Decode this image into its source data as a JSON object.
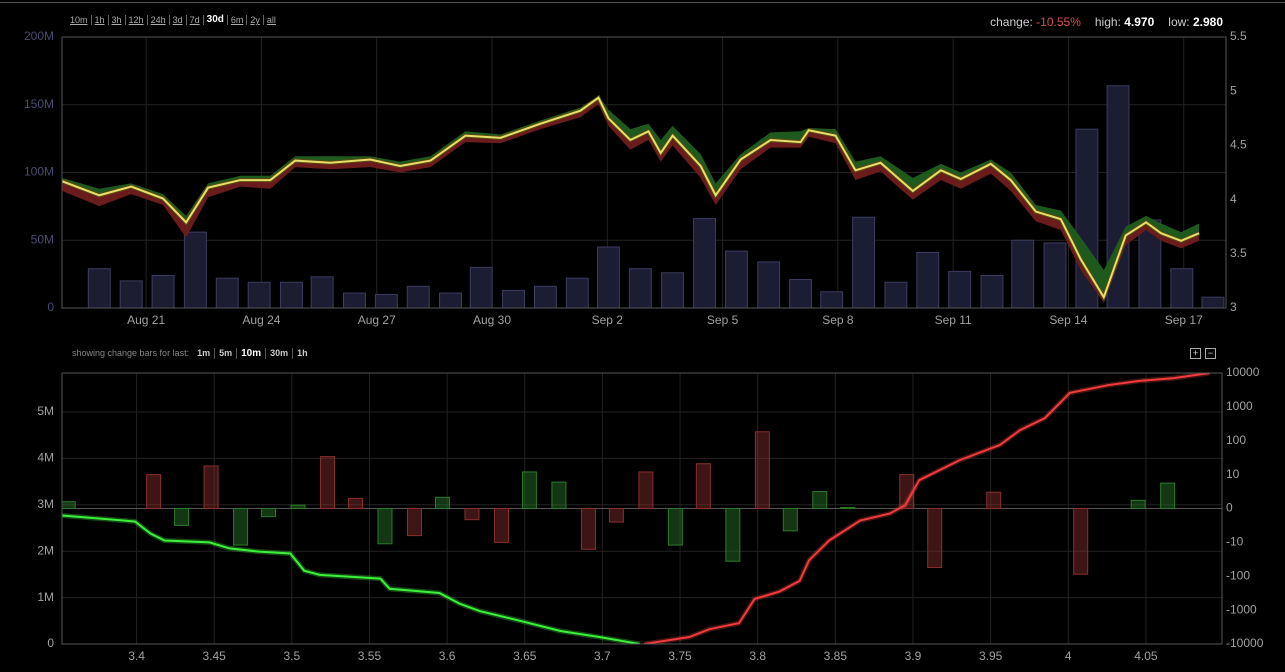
{
  "toolbar": {
    "ranges": [
      "10m",
      "1h",
      "3h",
      "12h",
      "24h",
      "3d",
      "7d",
      "30d",
      "6m",
      "2y",
      "all"
    ],
    "selected": 7
  },
  "stats": [
    {
      "label": "change:",
      "value": "-10.55%"
    },
    {
      "label": "high:",
      "value": "4.970"
    },
    {
      "label": "low:",
      "value": "2.980"
    }
  ],
  "change_bar_options": {
    "caption": "showing change bars for last:",
    "options": [
      "1m",
      "5m",
      "10m",
      "30m",
      "1h"
    ],
    "selected": 2
  },
  "zoom_buttons": [
    "+",
    "−"
  ],
  "chart_data": [
    {
      "type": "price",
      "xlim": [
        -2.19,
        28.1
      ],
      "xticks": [
        {
          "value": 0,
          "label": "Aug 21"
        },
        {
          "value": 3,
          "label": "Aug 24"
        },
        {
          "value": 6,
          "label": "Aug 27"
        },
        {
          "value": 9,
          "label": "Aug 30"
        },
        {
          "value": 12,
          "label": "Sep 2"
        },
        {
          "value": 15,
          "label": "Sep 5"
        },
        {
          "value": 18,
          "label": "Sep 8"
        },
        {
          "value": 21,
          "label": "Sep 11"
        },
        {
          "value": 24,
          "label": "Sep 14"
        },
        {
          "value": 27,
          "label": "Sep 17"
        }
      ],
      "ylim": [
        0,
        200000000
      ],
      "yticks": [
        0,
        {
          "value": 50000000,
          "label": "50M"
        },
        {
          "value": 100000000,
          "label": "100M"
        },
        {
          "value": 150000000,
          "label": "150M"
        },
        {
          "value": 200000000,
          "label": "200M"
        }
      ],
      "y2lim": [
        3,
        5.5
      ],
      "y2ticks": [
        3,
        3.5,
        4,
        4.5,
        5,
        5.5
      ],
      "grid": true,
      "volume": {
        "color": "#1c1c33",
        "bar_width": 0.57,
        "x": [
          -1.22,
          -0.39,
          0.44,
          1.28,
          2.11,
          2.94,
          3.78,
          4.58,
          5.42,
          6.25,
          7.08,
          7.92,
          8.72,
          9.56,
          10.39,
          11.22,
          12.03,
          12.86,
          13.7,
          14.53,
          15.36,
          16.2,
          17.03,
          17.84,
          18.67,
          19.51,
          20.34,
          21.17,
          22.01,
          22.81,
          23.65,
          24.48,
          25.29,
          26.12,
          26.95,
          27.76
        ],
        "values": [
          29000000,
          20000000,
          24000000,
          56000000,
          22000000,
          19000000,
          19000000,
          23000000,
          11000000,
          10000000,
          16000000,
          11000000,
          30000000,
          13000000,
          16000000,
          22000000,
          45000000,
          29000000,
          26000000,
          66000000,
          42000000,
          34000000,
          21000000,
          12000000,
          67000000,
          19000000,
          41000000,
          27000000,
          24000000,
          50000000,
          48000000,
          132000000,
          164000000,
          65000000,
          29000000,
          8000000
        ]
      },
      "price": {
        "axis": "y2",
        "color": "#e6df6a",
        "upper_color": "#1e5a1e",
        "lower_color": "#6a1c1c",
        "x": [
          -2.19,
          -1.22,
          -0.39,
          0.44,
          1.04,
          1.61,
          2.45,
          3.23,
          3.88,
          4.79,
          5.83,
          6.61,
          7.4,
          8.31,
          9.22,
          10.26,
          11.3,
          11.77,
          12.03,
          12.6,
          13.07,
          13.39,
          13.7,
          14.43,
          14.82,
          15.47,
          16.25,
          17.03,
          17.24,
          17.94,
          18.46,
          19.11,
          19.95,
          20.68,
          21.2,
          21.98,
          22.5,
          23.15,
          23.8,
          24.32,
          24.92,
          25.49,
          26.02,
          26.41,
          26.93,
          27.4
        ],
        "values": [
          4.17,
          4.04,
          4.12,
          4.01,
          3.79,
          4.11,
          4.18,
          4.18,
          4.36,
          4.34,
          4.37,
          4.31,
          4.36,
          4.59,
          4.57,
          4.7,
          4.82,
          4.94,
          4.75,
          4.55,
          4.63,
          4.43,
          4.59,
          4.31,
          4.04,
          4.37,
          4.55,
          4.53,
          4.64,
          4.59,
          4.27,
          4.34,
          4.08,
          4.27,
          4.19,
          4.33,
          4.18,
          3.89,
          3.82,
          3.45,
          3.1,
          3.67,
          3.79,
          3.69,
          3.62,
          3.69
        ],
        "upper": [
          4.2,
          4.1,
          4.15,
          4.05,
          3.85,
          4.15,
          4.22,
          4.22,
          4.4,
          4.4,
          4.4,
          4.35,
          4.4,
          4.63,
          4.6,
          4.73,
          4.85,
          4.96,
          4.83,
          4.65,
          4.7,
          4.55,
          4.68,
          4.42,
          4.15,
          4.42,
          4.62,
          4.63,
          4.66,
          4.65,
          4.35,
          4.4,
          4.2,
          4.33,
          4.25,
          4.37,
          4.25,
          3.95,
          3.9,
          3.65,
          3.35,
          3.75,
          3.85,
          3.78,
          3.7,
          3.78
        ],
        "lower": [
          4.08,
          3.94,
          4.05,
          3.95,
          3.65,
          4.02,
          4.12,
          4.1,
          4.3,
          4.28,
          4.3,
          4.25,
          4.3,
          4.53,
          4.52,
          4.65,
          4.76,
          4.88,
          4.68,
          4.46,
          4.55,
          4.35,
          4.5,
          4.2,
          3.95,
          4.28,
          4.48,
          4.48,
          4.58,
          4.52,
          4.18,
          4.26,
          4.0,
          4.18,
          4.1,
          4.24,
          4.08,
          3.8,
          3.72,
          3.35,
          3.05,
          3.58,
          3.72,
          3.62,
          3.55,
          3.62
        ]
      }
    },
    {
      "type": "depth",
      "xlim": [
        3.352,
        4.099
      ],
      "xticks": [
        3.4,
        3.45,
        3.5,
        3.55,
        3.6,
        3.65,
        3.7,
        3.75,
        3.8,
        3.85,
        3.9,
        3.95,
        4,
        4.05
      ],
      "ylim": [
        0,
        5840000
      ],
      "yticks": [
        0,
        {
          "value": 1000000,
          "label": "1M"
        },
        {
          "value": 2000000,
          "label": "2M"
        },
        {
          "value": 3000000,
          "label": "3M"
        },
        {
          "value": 4000000,
          "label": "4M"
        },
        {
          "value": 5000000,
          "label": "5M"
        }
      ],
      "y2lim": [
        -10000,
        10000
      ],
      "y2ticks": [
        -10000,
        -1000,
        -100,
        -10,
        0,
        10,
        100,
        1000,
        10000
      ],
      "y2scale": "symlog",
      "grid": true,
      "change_bars": {
        "axis": "y2",
        "bar_width": 0.009,
        "x": [
          3.356,
          3.411,
          3.429,
          3.448,
          3.467,
          3.485,
          3.504,
          3.523,
          3.541,
          3.56,
          3.579,
          3.597,
          3.616,
          3.635,
          3.653,
          3.672,
          3.691,
          3.709,
          3.728,
          3.747,
          3.765,
          3.784,
          3.803,
          3.821,
          3.84,
          3.858,
          3.896,
          3.914,
          3.952,
          4.008,
          4.045,
          4.064
        ],
        "values": [
          2,
          10,
          -5,
          18,
          -12,
          -2.4,
          1,
          34,
          3,
          -11,
          -8,
          3.3,
          -3.3,
          -10,
          12,
          7.8,
          -16,
          -4,
          12,
          -12,
          21,
          -36,
          184,
          -6.6,
          5,
          0.3,
          10,
          -55,
          4.8,
          -87,
          2.4,
          7.5
        ],
        "colors": [
          "#2b7a2b",
          "#8a2e2e",
          "#2b7a2b",
          "#8a2e2e",
          "#2b7a2b",
          "#2b7a2b",
          "#2b7a2b",
          "#8a2e2e",
          "#8a2e2e",
          "#2b7a2b",
          "#8a2e2e",
          "#2b7a2b",
          "#8a2e2e",
          "#8a2e2e",
          "#2b7a2b",
          "#2b7a2b",
          "#8a2e2e",
          "#8a2e2e",
          "#8a2e2e",
          "#2b7a2b",
          "#8a2e2e",
          "#2b7a2b",
          "#8a2e2e",
          "#2b7a2b",
          "#2b7a2b",
          "#2b7a2b",
          "#8a2e2e",
          "#8a2e2e",
          "#8a2e2e",
          "#8a2e2e",
          "#2b7a2b",
          "#2b7a2b"
        ]
      },
      "bids": {
        "color": "#3cf03c",
        "x": [
          3.352,
          3.399,
          3.409,
          3.418,
          3.447,
          3.46,
          3.479,
          3.499,
          3.508,
          3.518,
          3.557,
          3.563,
          3.595,
          3.608,
          3.621,
          3.647,
          3.673,
          3.698,
          3.724
        ],
        "values": [
          2770000,
          2640000,
          2380000,
          2230000,
          2190000,
          2060000,
          1990000,
          1950000,
          1580000,
          1490000,
          1410000,
          1190000,
          1100000,
          870000,
          710000,
          500000,
          280000,
          150000,
          0
        ]
      },
      "asks": {
        "color": "#f03c3c",
        "x": [
          3.727,
          3.756,
          3.769,
          3.788,
          3.798,
          3.814,
          3.827,
          3.833,
          3.846,
          3.866,
          3.885,
          3.895,
          3.904,
          3.93,
          3.956,
          3.969,
          3.985,
          4.001,
          4.026,
          4.046,
          4.068,
          4.091
        ],
        "values": [
          0,
          150000,
          320000,
          450000,
          970000,
          1130000,
          1360000,
          1800000,
          2230000,
          2660000,
          2810000,
          2990000,
          3530000,
          3960000,
          4290000,
          4610000,
          4870000,
          5410000,
          5580000,
          5670000,
          5730000,
          5840000
        ]
      }
    }
  ]
}
